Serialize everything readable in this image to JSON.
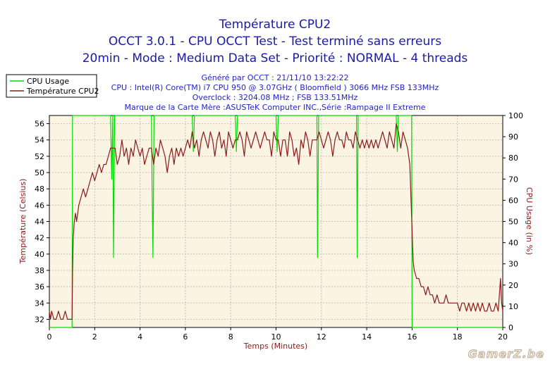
{
  "colors": {
    "title": "#1a1aa8",
    "info": "#2323c8",
    "temp": "#8b1a1a",
    "usage": "#00dd00",
    "plot_bg": "#fbf4e3",
    "grid": "#c0c0c0",
    "axis_text": "#000000",
    "axis_label_left": "#8b1a1a",
    "axis_label_right": "#8b1a1a",
    "xlabel": "#8b1a1a"
  },
  "title_lines": [
    "Température CPU2",
    "OCCT 3.0.1 - CPU OCCT Test - Test terminé sans erreurs",
    "20min - Mode : Medium Data Set - Priorité : NORMAL - 4 threads"
  ],
  "info_lines": [
    "Généré par OCCT : 21/11/10 13:22:22",
    "CPU : Intel(R) Core(TM) i7 CPU 950 @ 3.07GHz ( Bloomfield ) 3066 MHz FSB 133MHz",
    "Overclock : 3204.08 MHz ; FSB 133.51MHz",
    "Marque de la Carte Mère :ASUSTeK Computer INC.,Série :Rampage II Extreme"
  ],
  "watermark": "GamerZ.be",
  "chart_data": {
    "type": "line",
    "xlabel": "Temps (Minutes)",
    "ylabel": "Température (Celsius)",
    "y2label": "CPU Usage (in %)",
    "xlim": [
      0,
      20
    ],
    "ylim": [
      31,
      57
    ],
    "y2lim": [
      0,
      100
    ],
    "x_ticks": [
      0,
      2,
      4,
      6,
      8,
      10,
      12,
      14,
      16,
      18,
      20
    ],
    "y_ticks": [
      32,
      34,
      36,
      38,
      40,
      42,
      44,
      46,
      48,
      50,
      52,
      54,
      56
    ],
    "y2_ticks": [
      0,
      10,
      20,
      30,
      40,
      50,
      60,
      70,
      80,
      90,
      100
    ],
    "grid": true,
    "legend_position": "top-left",
    "series": [
      {
        "name": "CPU Usage",
        "axis": "right",
        "points": [
          [
            0,
            0
          ],
          [
            1.0,
            0
          ],
          [
            1.02,
            100
          ],
          [
            2.7,
            100
          ],
          [
            2.75,
            70
          ],
          [
            2.8,
            100
          ],
          [
            2.83,
            33
          ],
          [
            2.88,
            100
          ],
          [
            4.5,
            100
          ],
          [
            4.53,
            70
          ],
          [
            4.57,
            33
          ],
          [
            4.62,
            100
          ],
          [
            6.3,
            100
          ],
          [
            6.35,
            83
          ],
          [
            6.4,
            100
          ],
          [
            8.2,
            100
          ],
          [
            8.25,
            83
          ],
          [
            8.3,
            100
          ],
          [
            10.0,
            100
          ],
          [
            10.05,
            83
          ],
          [
            10.1,
            100
          ],
          [
            11.8,
            100
          ],
          [
            11.83,
            33
          ],
          [
            11.88,
            100
          ],
          [
            13.55,
            100
          ],
          [
            13.58,
            33
          ],
          [
            13.62,
            100
          ],
          [
            15.3,
            100
          ],
          [
            15.35,
            83
          ],
          [
            15.4,
            100
          ],
          [
            15.98,
            100
          ],
          [
            16.0,
            0
          ],
          [
            20,
            0
          ]
        ]
      },
      {
        "name": "Température CPU2",
        "axis": "left",
        "points": [
          [
            0,
            33
          ],
          [
            0.05,
            32
          ],
          [
            0.1,
            33
          ],
          [
            0.2,
            32
          ],
          [
            0.3,
            32
          ],
          [
            0.4,
            33
          ],
          [
            0.5,
            32
          ],
          [
            0.6,
            32
          ],
          [
            0.7,
            33
          ],
          [
            0.8,
            32
          ],
          [
            0.9,
            32
          ],
          [
            1.0,
            32
          ],
          [
            1.02,
            37
          ],
          [
            1.05,
            42
          ],
          [
            1.1,
            44
          ],
          [
            1.15,
            45
          ],
          [
            1.2,
            44
          ],
          [
            1.3,
            46
          ],
          [
            1.4,
            47
          ],
          [
            1.5,
            48
          ],
          [
            1.6,
            47
          ],
          [
            1.7,
            48
          ],
          [
            1.8,
            49
          ],
          [
            1.9,
            50
          ],
          [
            2.0,
            49
          ],
          [
            2.1,
            50
          ],
          [
            2.2,
            51
          ],
          [
            2.3,
            50
          ],
          [
            2.4,
            51
          ],
          [
            2.5,
            51
          ],
          [
            2.6,
            52
          ],
          [
            2.7,
            53
          ],
          [
            2.8,
            53
          ],
          [
            2.9,
            53
          ],
          [
            3.0,
            51
          ],
          [
            3.1,
            52
          ],
          [
            3.2,
            54
          ],
          [
            3.3,
            52
          ],
          [
            3.4,
            53
          ],
          [
            3.5,
            51
          ],
          [
            3.6,
            53
          ],
          [
            3.7,
            52
          ],
          [
            3.8,
            54
          ],
          [
            3.9,
            53
          ],
          [
            4.0,
            52
          ],
          [
            4.1,
            53
          ],
          [
            4.2,
            51
          ],
          [
            4.3,
            52
          ],
          [
            4.4,
            53
          ],
          [
            4.5,
            53
          ],
          [
            4.6,
            51
          ],
          [
            4.7,
            53
          ],
          [
            4.8,
            52
          ],
          [
            4.9,
            54
          ],
          [
            5.0,
            53
          ],
          [
            5.1,
            52
          ],
          [
            5.2,
            50
          ],
          [
            5.3,
            52
          ],
          [
            5.4,
            53
          ],
          [
            5.5,
            51
          ],
          [
            5.6,
            53
          ],
          [
            5.7,
            52
          ],
          [
            5.8,
            53
          ],
          [
            5.9,
            52
          ],
          [
            6.0,
            53
          ],
          [
            6.1,
            54
          ],
          [
            6.2,
            53
          ],
          [
            6.3,
            55
          ],
          [
            6.4,
            53
          ],
          [
            6.5,
            54
          ],
          [
            6.6,
            52
          ],
          [
            6.7,
            54
          ],
          [
            6.8,
            55
          ],
          [
            6.9,
            54
          ],
          [
            7.0,
            53
          ],
          [
            7.1,
            55
          ],
          [
            7.2,
            54
          ],
          [
            7.3,
            52
          ],
          [
            7.4,
            54
          ],
          [
            7.5,
            55
          ],
          [
            7.6,
            53
          ],
          [
            7.7,
            54
          ],
          [
            7.8,
            52
          ],
          [
            7.9,
            55
          ],
          [
            8.0,
            54
          ],
          [
            8.1,
            53
          ],
          [
            8.2,
            54
          ],
          [
            8.3,
            54
          ],
          [
            8.4,
            55
          ],
          [
            8.5,
            54
          ],
          [
            8.6,
            52
          ],
          [
            8.7,
            55
          ],
          [
            8.8,
            54
          ],
          [
            8.9,
            53
          ],
          [
            9.0,
            54
          ],
          [
            9.1,
            55
          ],
          [
            9.2,
            54
          ],
          [
            9.3,
            53
          ],
          [
            9.4,
            54
          ],
          [
            9.5,
            55
          ],
          [
            9.6,
            54
          ],
          [
            9.7,
            54
          ],
          [
            9.8,
            52
          ],
          [
            9.9,
            55
          ],
          [
            10.0,
            54
          ],
          [
            10.1,
            54
          ],
          [
            10.2,
            52
          ],
          [
            10.3,
            54
          ],
          [
            10.4,
            54
          ],
          [
            10.5,
            52
          ],
          [
            10.6,
            55
          ],
          [
            10.7,
            54
          ],
          [
            10.8,
            52
          ],
          [
            10.9,
            53
          ],
          [
            11.0,
            51
          ],
          [
            11.1,
            54
          ],
          [
            11.2,
            53
          ],
          [
            11.3,
            55
          ],
          [
            11.4,
            54
          ],
          [
            11.5,
            52
          ],
          [
            11.6,
            54
          ],
          [
            11.7,
            54
          ],
          [
            11.8,
            54
          ],
          [
            11.9,
            55
          ],
          [
            12.0,
            54
          ],
          [
            12.1,
            53
          ],
          [
            12.2,
            54
          ],
          [
            12.3,
            55
          ],
          [
            12.4,
            54
          ],
          [
            12.5,
            52
          ],
          [
            12.6,
            54
          ],
          [
            12.7,
            55
          ],
          [
            12.8,
            54
          ],
          [
            12.9,
            54
          ],
          [
            13.0,
            53
          ],
          [
            13.1,
            55
          ],
          [
            13.2,
            54
          ],
          [
            13.3,
            54
          ],
          [
            13.4,
            53
          ],
          [
            13.5,
            55
          ],
          [
            13.6,
            54
          ],
          [
            13.7,
            53
          ],
          [
            13.8,
            54
          ],
          [
            13.9,
            53
          ],
          [
            14.0,
            54
          ],
          [
            14.1,
            53
          ],
          [
            14.2,
            54
          ],
          [
            14.3,
            53
          ],
          [
            14.4,
            54
          ],
          [
            14.5,
            53
          ],
          [
            14.6,
            54
          ],
          [
            14.7,
            55
          ],
          [
            14.8,
            54
          ],
          [
            14.9,
            53
          ],
          [
            15.0,
            55
          ],
          [
            15.1,
            54
          ],
          [
            15.2,
            53
          ],
          [
            15.3,
            56
          ],
          [
            15.4,
            55
          ],
          [
            15.5,
            53
          ],
          [
            15.6,
            55
          ],
          [
            15.7,
            54
          ],
          [
            15.8,
            53
          ],
          [
            15.9,
            51
          ],
          [
            16.0,
            43
          ],
          [
            16.05,
            39
          ],
          [
            16.1,
            38
          ],
          [
            16.2,
            37
          ],
          [
            16.3,
            37
          ],
          [
            16.4,
            36
          ],
          [
            16.5,
            36
          ],
          [
            16.6,
            35
          ],
          [
            16.7,
            36
          ],
          [
            16.8,
            35
          ],
          [
            16.9,
            35
          ],
          [
            17.0,
            34
          ],
          [
            17.1,
            35
          ],
          [
            17.2,
            34
          ],
          [
            17.3,
            34
          ],
          [
            17.4,
            34
          ],
          [
            17.5,
            35
          ],
          [
            17.6,
            34
          ],
          [
            17.7,
            34
          ],
          [
            17.8,
            34
          ],
          [
            17.9,
            34
          ],
          [
            18.0,
            34
          ],
          [
            18.1,
            33
          ],
          [
            18.2,
            34
          ],
          [
            18.3,
            34
          ],
          [
            18.4,
            33
          ],
          [
            18.5,
            34
          ],
          [
            18.6,
            33
          ],
          [
            18.7,
            34
          ],
          [
            18.8,
            33
          ],
          [
            18.9,
            34
          ],
          [
            19.0,
            33
          ],
          [
            19.1,
            34
          ],
          [
            19.2,
            33
          ],
          [
            19.3,
            33
          ],
          [
            19.4,
            34
          ],
          [
            19.5,
            33
          ],
          [
            19.6,
            33
          ],
          [
            19.7,
            34
          ],
          [
            19.8,
            33
          ],
          [
            19.9,
            37
          ],
          [
            19.95,
            34
          ],
          [
            20.0,
            33
          ]
        ]
      }
    ]
  }
}
